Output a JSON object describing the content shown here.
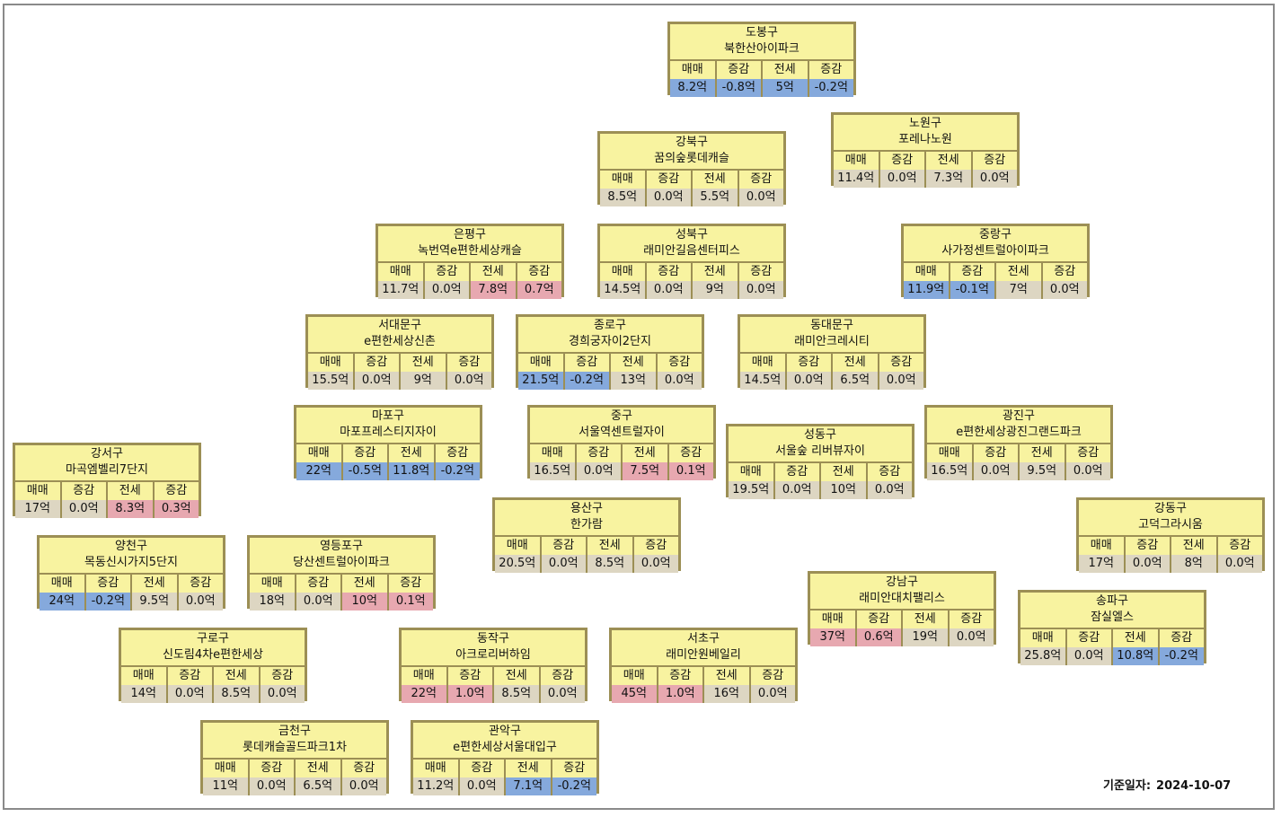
{
  "labels": {
    "sale": "매매",
    "change": "증감",
    "jeonse": "전세"
  },
  "base_date": {
    "label": "기준일자:",
    "value": "2024-10-07"
  },
  "colors": {
    "card_bg": "#f8f3a0",
    "border": "#9c8f55",
    "neutral": "#ddd6c2",
    "increase": "#e7a8b0",
    "decrease": "#85a9dc"
  },
  "cards": [
    {
      "district": "도봉구",
      "complex": "북한산아이파크",
      "sale": "8.2억",
      "sale_chg": "-0.8억",
      "jeonse": "5억",
      "jeonse_chg": "-0.2억",
      "sale_state": "neg",
      "jeonse_state": "neg"
    },
    {
      "district": "노원구",
      "complex": "포레나노원",
      "sale": "11.4억",
      "sale_chg": "0.0억",
      "jeonse": "7.3억",
      "jeonse_chg": "0.0억",
      "sale_state": "",
      "jeonse_state": ""
    },
    {
      "district": "강북구",
      "complex": "꿈의숲롯데캐슬",
      "sale": "8.5억",
      "sale_chg": "0.0억",
      "jeonse": "5.5억",
      "jeonse_chg": "0.0억",
      "sale_state": "",
      "jeonse_state": ""
    },
    {
      "district": "은평구",
      "complex": "녹번역e편한세상캐슬",
      "sale": "11.7억",
      "sale_chg": "0.0억",
      "jeonse": "7.8억",
      "jeonse_chg": "0.7억",
      "sale_state": "",
      "jeonse_state": "pos"
    },
    {
      "district": "성북구",
      "complex": "래미안길음센터피스",
      "sale": "14.5억",
      "sale_chg": "0.0억",
      "jeonse": "9억",
      "jeonse_chg": "0.0억",
      "sale_state": "",
      "jeonse_state": ""
    },
    {
      "district": "중랑구",
      "complex": "사가정센트럴아이파크",
      "sale": "11.9억",
      "sale_chg": "-0.1억",
      "jeonse": "7억",
      "jeonse_chg": "0.0억",
      "sale_state": "neg",
      "jeonse_state": ""
    },
    {
      "district": "서대문구",
      "complex": "e편한세상신촌",
      "sale": "15.5억",
      "sale_chg": "0.0억",
      "jeonse": "9억",
      "jeonse_chg": "0.0억",
      "sale_state": "",
      "jeonse_state": ""
    },
    {
      "district": "종로구",
      "complex": "경희궁자이2단지",
      "sale": "21.5억",
      "sale_chg": "-0.2억",
      "jeonse": "13억",
      "jeonse_chg": "0.0억",
      "sale_state": "neg",
      "jeonse_state": ""
    },
    {
      "district": "동대문구",
      "complex": "래미안크레시티",
      "sale": "14.5억",
      "sale_chg": "0.0억",
      "jeonse": "6.5억",
      "jeonse_chg": "0.0억",
      "sale_state": "",
      "jeonse_state": ""
    },
    {
      "district": "마포구",
      "complex": "마포프레스티지자이",
      "sale": "22억",
      "sale_chg": "-0.5억",
      "jeonse": "11.8억",
      "jeonse_chg": "-0.2억",
      "sale_state": "neg",
      "jeonse_state": "neg"
    },
    {
      "district": "중구",
      "complex": "서울역센트럴자이",
      "sale": "16.5억",
      "sale_chg": "0.0억",
      "jeonse": "7.5억",
      "jeonse_chg": "0.1억",
      "sale_state": "",
      "jeonse_state": "pos"
    },
    {
      "district": "광진구",
      "complex": "e편한세상광진그랜드파크",
      "sale": "16.5억",
      "sale_chg": "0.0억",
      "jeonse": "9.5억",
      "jeonse_chg": "0.0억",
      "sale_state": "",
      "jeonse_state": ""
    },
    {
      "district": "성동구",
      "complex": "서울숲 리버뷰자이",
      "sale": "19.5억",
      "sale_chg": "0.0억",
      "jeonse": "10억",
      "jeonse_chg": "0.0억",
      "sale_state": "",
      "jeonse_state": ""
    },
    {
      "district": "강서구",
      "complex": "마곡엠벨리7단지",
      "sale": "17억",
      "sale_chg": "0.0억",
      "jeonse": "8.3억",
      "jeonse_chg": "0.3억",
      "sale_state": "",
      "jeonse_state": "pos"
    },
    {
      "district": "용산구",
      "complex": "한가람",
      "sale": "20.5억",
      "sale_chg": "0.0억",
      "jeonse": "8.5억",
      "jeonse_chg": "0.0억",
      "sale_state": "",
      "jeonse_state": ""
    },
    {
      "district": "강동구",
      "complex": "고덕그라시움",
      "sale": "17억",
      "sale_chg": "0.0억",
      "jeonse": "8억",
      "jeonse_chg": "0.0억",
      "sale_state": "",
      "jeonse_state": ""
    },
    {
      "district": "양천구",
      "complex": "목동신시가지5단지",
      "sale": "24억",
      "sale_chg": "-0.2억",
      "jeonse": "9.5억",
      "jeonse_chg": "0.0억",
      "sale_state": "neg",
      "jeonse_state": ""
    },
    {
      "district": "영등포구",
      "complex": "당산센트럴아이파크",
      "sale": "18억",
      "sale_chg": "0.0억",
      "jeonse": "10억",
      "jeonse_chg": "0.1억",
      "sale_state": "",
      "jeonse_state": "pos"
    },
    {
      "district": "강남구",
      "complex": "래미안대치팰리스",
      "sale": "37억",
      "sale_chg": "0.6억",
      "jeonse": "19억",
      "jeonse_chg": "0.0억",
      "sale_state": "pos",
      "jeonse_state": ""
    },
    {
      "district": "송파구",
      "complex": "잠실엘스",
      "sale": "25.8억",
      "sale_chg": "0.0억",
      "jeonse": "10.8억",
      "jeonse_chg": "-0.2억",
      "sale_state": "",
      "jeonse_state": "neg"
    },
    {
      "district": "구로구",
      "complex": "신도림4차e편한세상",
      "sale": "14억",
      "sale_chg": "0.0억",
      "jeonse": "8.5억",
      "jeonse_chg": "0.0억",
      "sale_state": "",
      "jeonse_state": ""
    },
    {
      "district": "동작구",
      "complex": "아크로리버하임",
      "sale": "22억",
      "sale_chg": "1.0억",
      "jeonse": "8.5억",
      "jeonse_chg": "0.0억",
      "sale_state": "pos",
      "jeonse_state": ""
    },
    {
      "district": "서초구",
      "complex": "래미안원베일리",
      "sale": "45억",
      "sale_chg": "1.0억",
      "jeonse": "16억",
      "jeonse_chg": "0.0억",
      "sale_state": "pos",
      "jeonse_state": ""
    },
    {
      "district": "금천구",
      "complex": "롯데캐슬골드파크1차",
      "sale": "11억",
      "sale_chg": "0.0억",
      "jeonse": "6.5억",
      "jeonse_chg": "0.0억",
      "sale_state": "",
      "jeonse_state": ""
    },
    {
      "district": "관악구",
      "complex": "e편한세상서울대입구",
      "sale": "11.2억",
      "sale_chg": "0.0억",
      "jeonse": "7.1억",
      "jeonse_chg": "-0.2억",
      "sale_state": "",
      "jeonse_state": "neg"
    }
  ]
}
